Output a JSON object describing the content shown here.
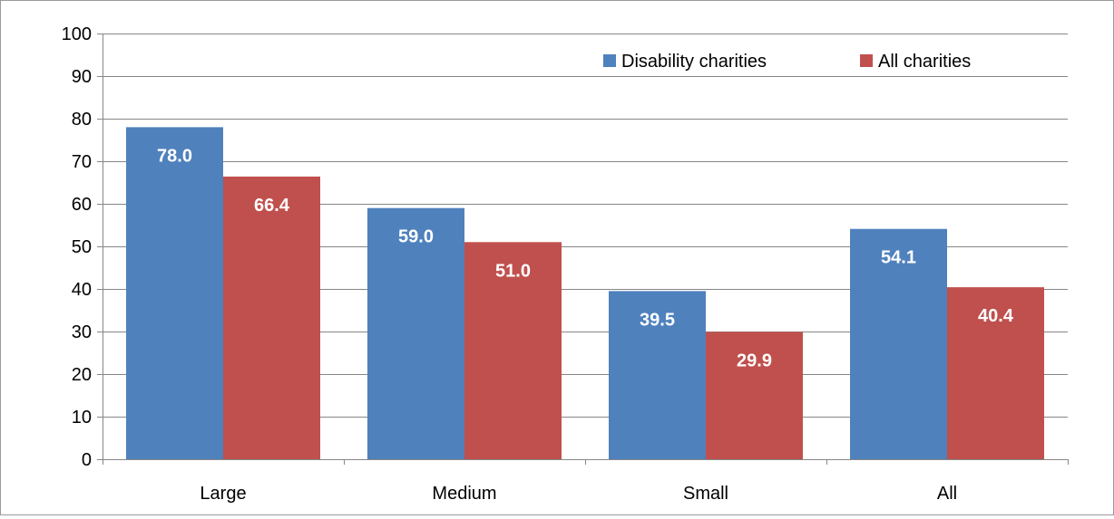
{
  "chart_data": {
    "type": "bar",
    "categories": [
      "Large",
      "Medium",
      "Small",
      "All"
    ],
    "series": [
      {
        "name": "Disability charities",
        "values": [
          78.0,
          59.0,
          39.5,
          54.1
        ],
        "labels": [
          "78.0",
          "59.0",
          "39.5",
          "54.1"
        ],
        "color": "#4f81bd"
      },
      {
        "name": "All charities",
        "values": [
          66.4,
          51.0,
          29.9,
          40.4
        ],
        "labels": [
          "66.4",
          "51.0",
          "29.9",
          "40.4"
        ],
        "color": "#c0504d"
      }
    ],
    "ylim": [
      0,
      100
    ],
    "yticks": [
      "0",
      "10",
      "20",
      "30",
      "40",
      "50",
      "60",
      "70",
      "80",
      "90",
      "100"
    ],
    "grid": true,
    "legend_position": "top-right",
    "data_label_color": "#ffffff",
    "gridline_color": "#868686",
    "text_color": "#000000"
  }
}
